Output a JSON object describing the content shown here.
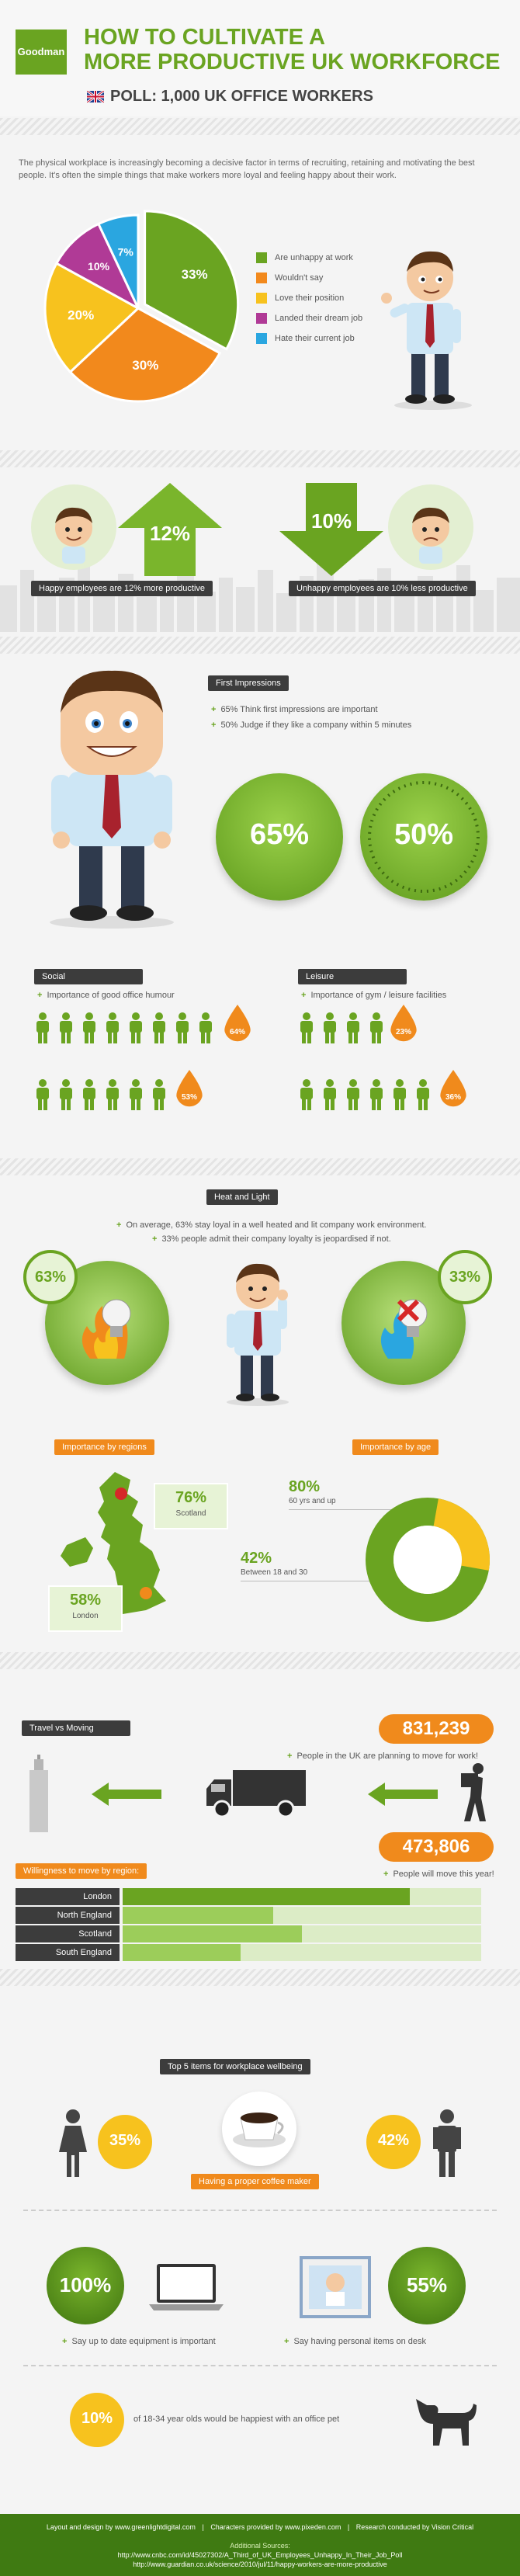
{
  "header": {
    "logo": "Goodman",
    "title_line1": "HOW TO CULTIVATE A",
    "title_line2": "MORE PRODUCTIVE UK WORKFORCE",
    "subtitle": "POLL: 1,000 UK OFFICE WORKERS"
  },
  "intro": "The physical workplace is increasingly becoming a decisive factor in terms of recruiting, retaining and motivating the best people. It's often the simple things that make workers more loyal and feeling happy about their work.",
  "pie": {
    "slices": [
      {
        "label": "Are unhappy at work",
        "value": 33,
        "text": "33%",
        "color": "#6aa421"
      },
      {
        "label": "Wouldn't say",
        "value": 30,
        "text": "30%",
        "color": "#f2891c"
      },
      {
        "label": "Love their position",
        "value": 20,
        "text": "20%",
        "color": "#f7c21e"
      },
      {
        "label": "Landed their dream job",
        "value": 10,
        "text": "10%",
        "color": "#b03a96"
      },
      {
        "label": "Hate their current job",
        "value": 7,
        "text": "7%",
        "color": "#2aa6e0"
      }
    ]
  },
  "productivity": {
    "happy_value": "12%",
    "happy_label": "Happy employees are 12% more productive",
    "unhappy_value": "10%",
    "unhappy_label": "Unhappy employees are 10% less productive"
  },
  "impressions": {
    "title": "First Impressions",
    "point1": "65% Think first impressions are important",
    "point2": "50% Judge if they like a company within 5 minutes",
    "circle1": "65%",
    "circle2": "50%"
  },
  "social": {
    "title": "Social",
    "sub": "Importance of good office humour",
    "drop1": "64%",
    "drop2": "53%"
  },
  "leisure": {
    "title": "Leisure",
    "sub": "Importance of gym / leisure facilities",
    "drop1": "23%",
    "drop2": "36%"
  },
  "heat": {
    "title": "Heat and Light",
    "point1": "On average, 63% stay loyal in a well heated and lit company work environment.",
    "point2": "33% people admit their company loyalty is jeopardised if not.",
    "left": "63%",
    "right": "33%"
  },
  "regions": {
    "title": "Importance by regions",
    "scotland_value": "76%",
    "scotland_label": "Scotland",
    "london_value": "58%",
    "london_label": "London"
  },
  "age": {
    "title": "Importance by age",
    "older_value": "80%",
    "older_label": "60 yrs and up",
    "younger_value": "42%",
    "younger_label": "Between 18 and 30"
  },
  "travel": {
    "title": "Travel vs Moving",
    "planning_value": "831,239",
    "planning_label": "People in the UK are planning to move for work!",
    "will_value": "473,806",
    "will_label": "People will move this year!",
    "willingness_title": "Willingness to move by region:",
    "bars": [
      {
        "label": "London",
        "value": 0.8
      },
      {
        "label": "North England",
        "value": 0.42
      },
      {
        "label": "Scotland",
        "value": 0.5
      },
      {
        "label": "South England",
        "value": 0.33
      }
    ]
  },
  "top5": {
    "title": "Top 5 items for workplace wellbeing",
    "female": "35%",
    "male": "42%",
    "coffee_label": "Having a proper coffee maker",
    "equip_value": "100%",
    "equip_label": "Say up to date equipment is important",
    "desk_value": "55%",
    "desk_label": "Say having personal items on desk",
    "pet_value": "10%",
    "pet_label": "of 18-34 year olds would be happiest with an office pet"
  },
  "footer": {
    "credit1": "Layout and design by www.greenlightdigital.com",
    "credit2": "Characters provided by www.pixeden.com",
    "credit3": "Research conducted by Vision Critical",
    "sources_title": "Additional Sources:",
    "source1": "http://www.cnbc.com/id/45027302/A_Third_of_UK_Employees_Unhappy_In_Their_Job_Poll",
    "source2": "http://www.guardian.co.uk/science/2010/jul/11/happy-workers-are-more-productive"
  }
}
